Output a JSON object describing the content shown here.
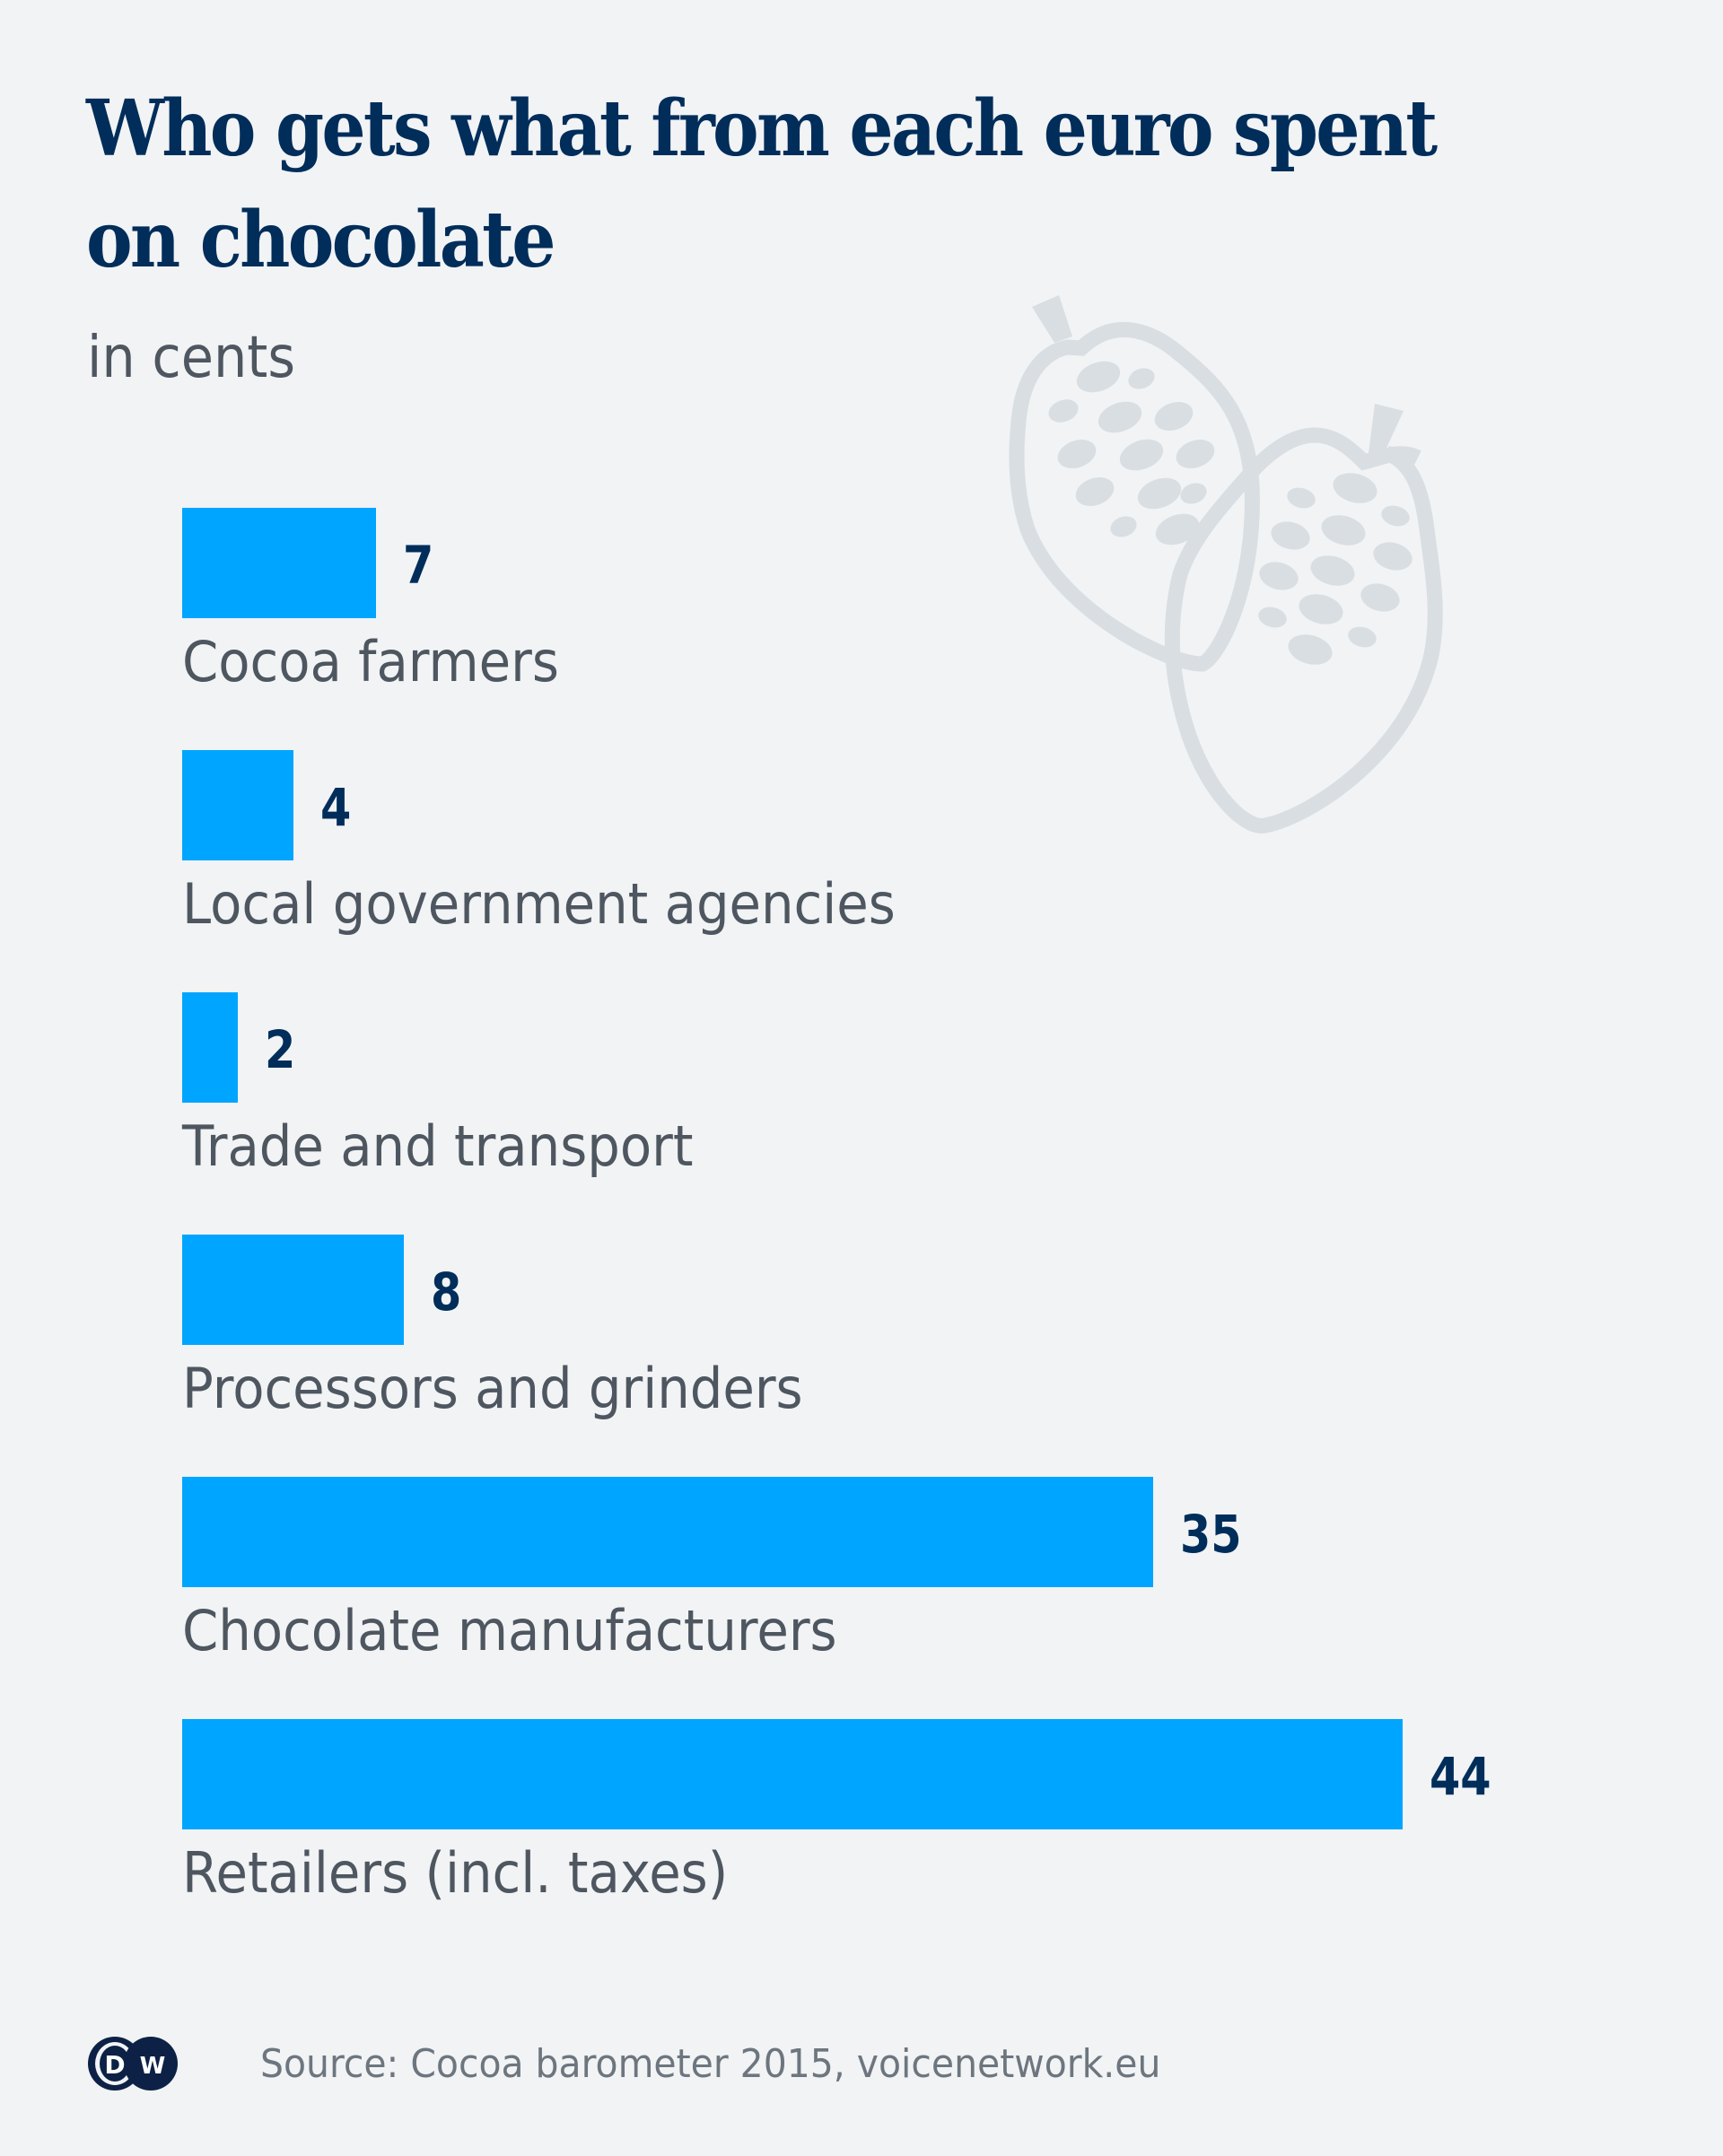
{
  "chart_data": {
    "type": "bar",
    "orientation": "horizontal",
    "title": "Who gets what from each euro spent on chocolate",
    "title_lines": [
      "Who gets what from each euro spent",
      "on chocolate"
    ],
    "subtitle": "in cents",
    "xlabel": "",
    "ylabel": "",
    "xlim": [
      0,
      44
    ],
    "grid": false,
    "legend": "none",
    "categories": [
      "Cocoa farmers",
      "Local government agencies",
      "Trade and transport",
      "Processors and grinders",
      "Chocolate manufacturers",
      "Retailers (incl. taxes)"
    ],
    "values": [
      7,
      4,
      2,
      8,
      35,
      44
    ],
    "value_labels": [
      "7",
      "4",
      "2",
      "8",
      "35",
      "44"
    ],
    "unit": "cents",
    "bar_color": "#00a5ff",
    "source": "Source: Cocoa barometer 2015, voicenetwork.eu"
  },
  "colors": {
    "background": "#f1f3f5",
    "title": "#002d5a",
    "label": "#4e5660",
    "illustration": "#d9dee2",
    "logo": "#0c2145"
  },
  "branding": {
    "logo_text": [
      "D",
      "W"
    ],
    "logo_name": "DW"
  },
  "illustration": "cocoa-pods-icon"
}
